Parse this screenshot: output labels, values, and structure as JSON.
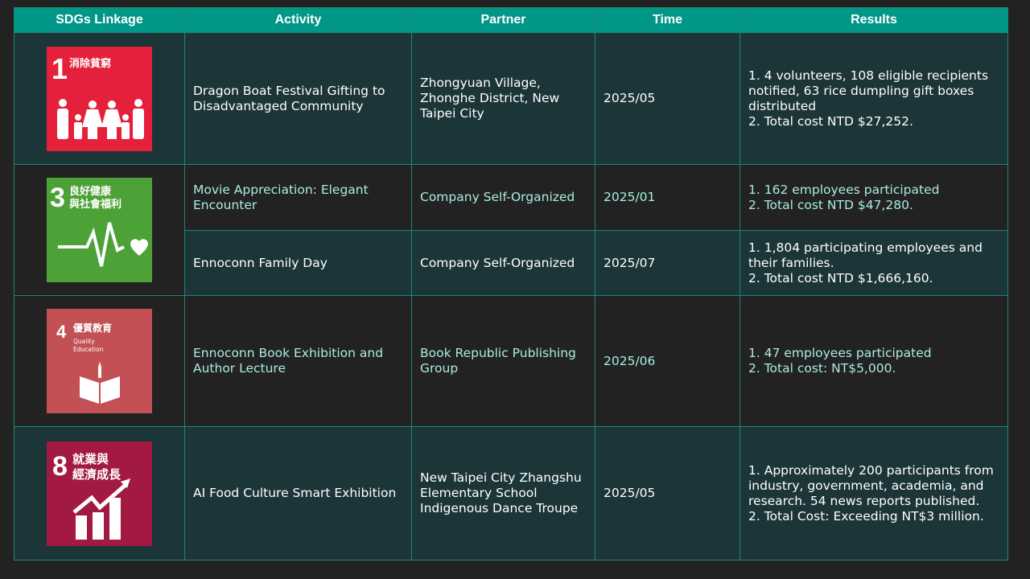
{
  "headers": [
    "SDGs Linkage",
    "Activity",
    "Partner",
    "Time",
    "Results"
  ],
  "colors": {
    "header": "#009688",
    "row_teal": "#1c3538",
    "row_dark": "#222222",
    "accent_text": "#a9ece2",
    "sdg1": "#e5203a",
    "sdg3": "#4ca137",
    "sdg4": "#c25054",
    "sdg8": "#a21942"
  },
  "sdgs": [
    {
      "number": "1",
      "title": "消除貧窮",
      "icon": "family-icon"
    },
    {
      "number": "3",
      "title_line1": "良好健康",
      "title_line2": "與社會福利",
      "icon": "heartbeat-icon"
    },
    {
      "number": "4",
      "title": "優質教育",
      "subtitle_line1": "Quality",
      "subtitle_line2": "Education",
      "icon": "book-icon"
    },
    {
      "number": "8",
      "title_line1": "就業與",
      "title_line2": "經濟成長",
      "icon": "growth-chart-icon"
    }
  ],
  "rows": [
    {
      "activity": "Dragon Boat Festival Gifting to Disadvantaged Community",
      "partner": "Zhongyuan Village, Zhonghe District, New Taipei City",
      "time": "2025/05",
      "results": [
        "1. 4 volunteers, 108 eligible recipients notified, 63 rice dumpling gift boxes distributed",
        "2. Total cost NTD $27,252."
      ]
    },
    {
      "activity": "Movie Appreciation: Elegant Encounter",
      "partner": "Company Self-Organized",
      "time": "2025/01",
      "results": [
        "1. 162 employees participated",
        "2. Total cost NTD $47,280."
      ]
    },
    {
      "activity": "Ennoconn Family Day",
      "partner": "Company Self-Organized",
      "time": "2025/07",
      "results": [
        "1. 1,804 participating employees and their families.",
        "2. Total cost NTD $1,666,160."
      ]
    },
    {
      "activity": "Ennoconn Book Exhibition and Author Lecture",
      "partner": "Book Republic Publishing Group",
      "time": "2025/06",
      "results": [
        "1. 47 employees participated",
        "2. Total cost: NT$5,000."
      ]
    },
    {
      "activity": "AI Food Culture Smart Exhibition",
      "partner": "New Taipei City Zhangshu Elementary School Indigenous Dance Troupe",
      "time": "2025/05",
      "results": [
        "1. Approximately 200 participants from industry, government, academia, and research. 54 news reports published.",
        "2. Total Cost: Exceeding NT$3 million."
      ]
    }
  ]
}
